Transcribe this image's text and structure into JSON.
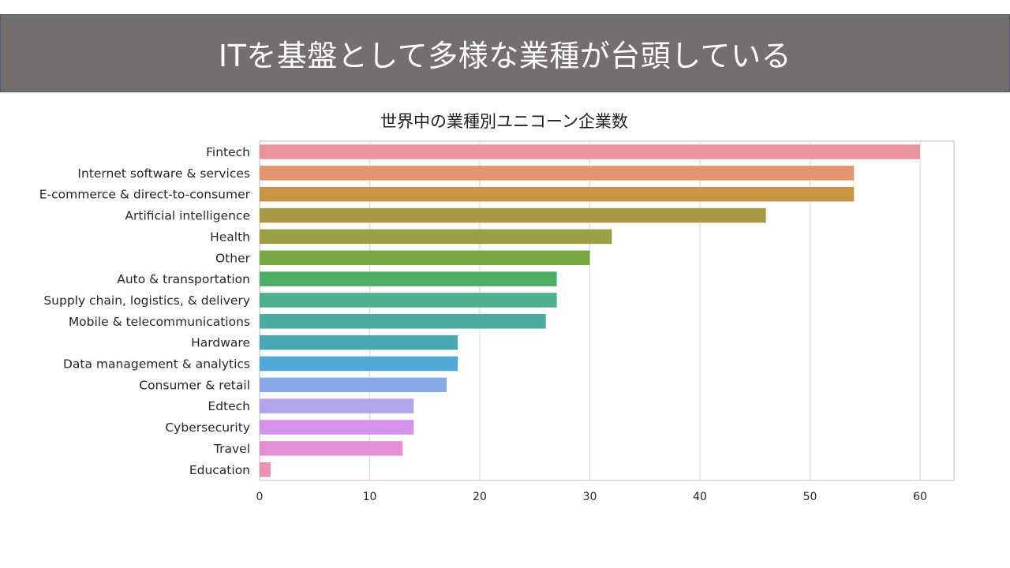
{
  "banner": {
    "title": "ITを基盤として多様な業種が台頭している"
  },
  "chart_data": {
    "type": "bar",
    "orientation": "horizontal",
    "title": "世界中の業種別ユニコーン企業数",
    "xlabel": "",
    "ylabel": "",
    "xlim": [
      0,
      63
    ],
    "xticks": [
      0,
      10,
      20,
      30,
      40,
      50,
      60
    ],
    "grid": true,
    "categories": [
      "Fintech",
      "Internet software & services",
      "E-commerce & direct-to-consumer",
      "Artificial intelligence",
      "Health",
      "Other",
      "Auto & transportation",
      "Supply chain, logistics, & delivery",
      "Mobile & telecommunications",
      "Hardware",
      "Data management & analytics",
      "Consumer & retail",
      "Edtech",
      "Cybersecurity",
      "Travel",
      "Education"
    ],
    "values": [
      60,
      54,
      54,
      46,
      32,
      30,
      27,
      27,
      26,
      18,
      18,
      17,
      14,
      14,
      13,
      1
    ],
    "colors": [
      "#e8939e",
      "#e6946f",
      "#c99545",
      "#a89a44",
      "#9a9e44",
      "#78a843",
      "#4cad65",
      "#4caf8e",
      "#4aaba0",
      "#48a8b3",
      "#4eaad4",
      "#8aa9e4",
      "#b3a4ea",
      "#d592e8",
      "#e48fd4",
      "#e992b5"
    ]
  }
}
